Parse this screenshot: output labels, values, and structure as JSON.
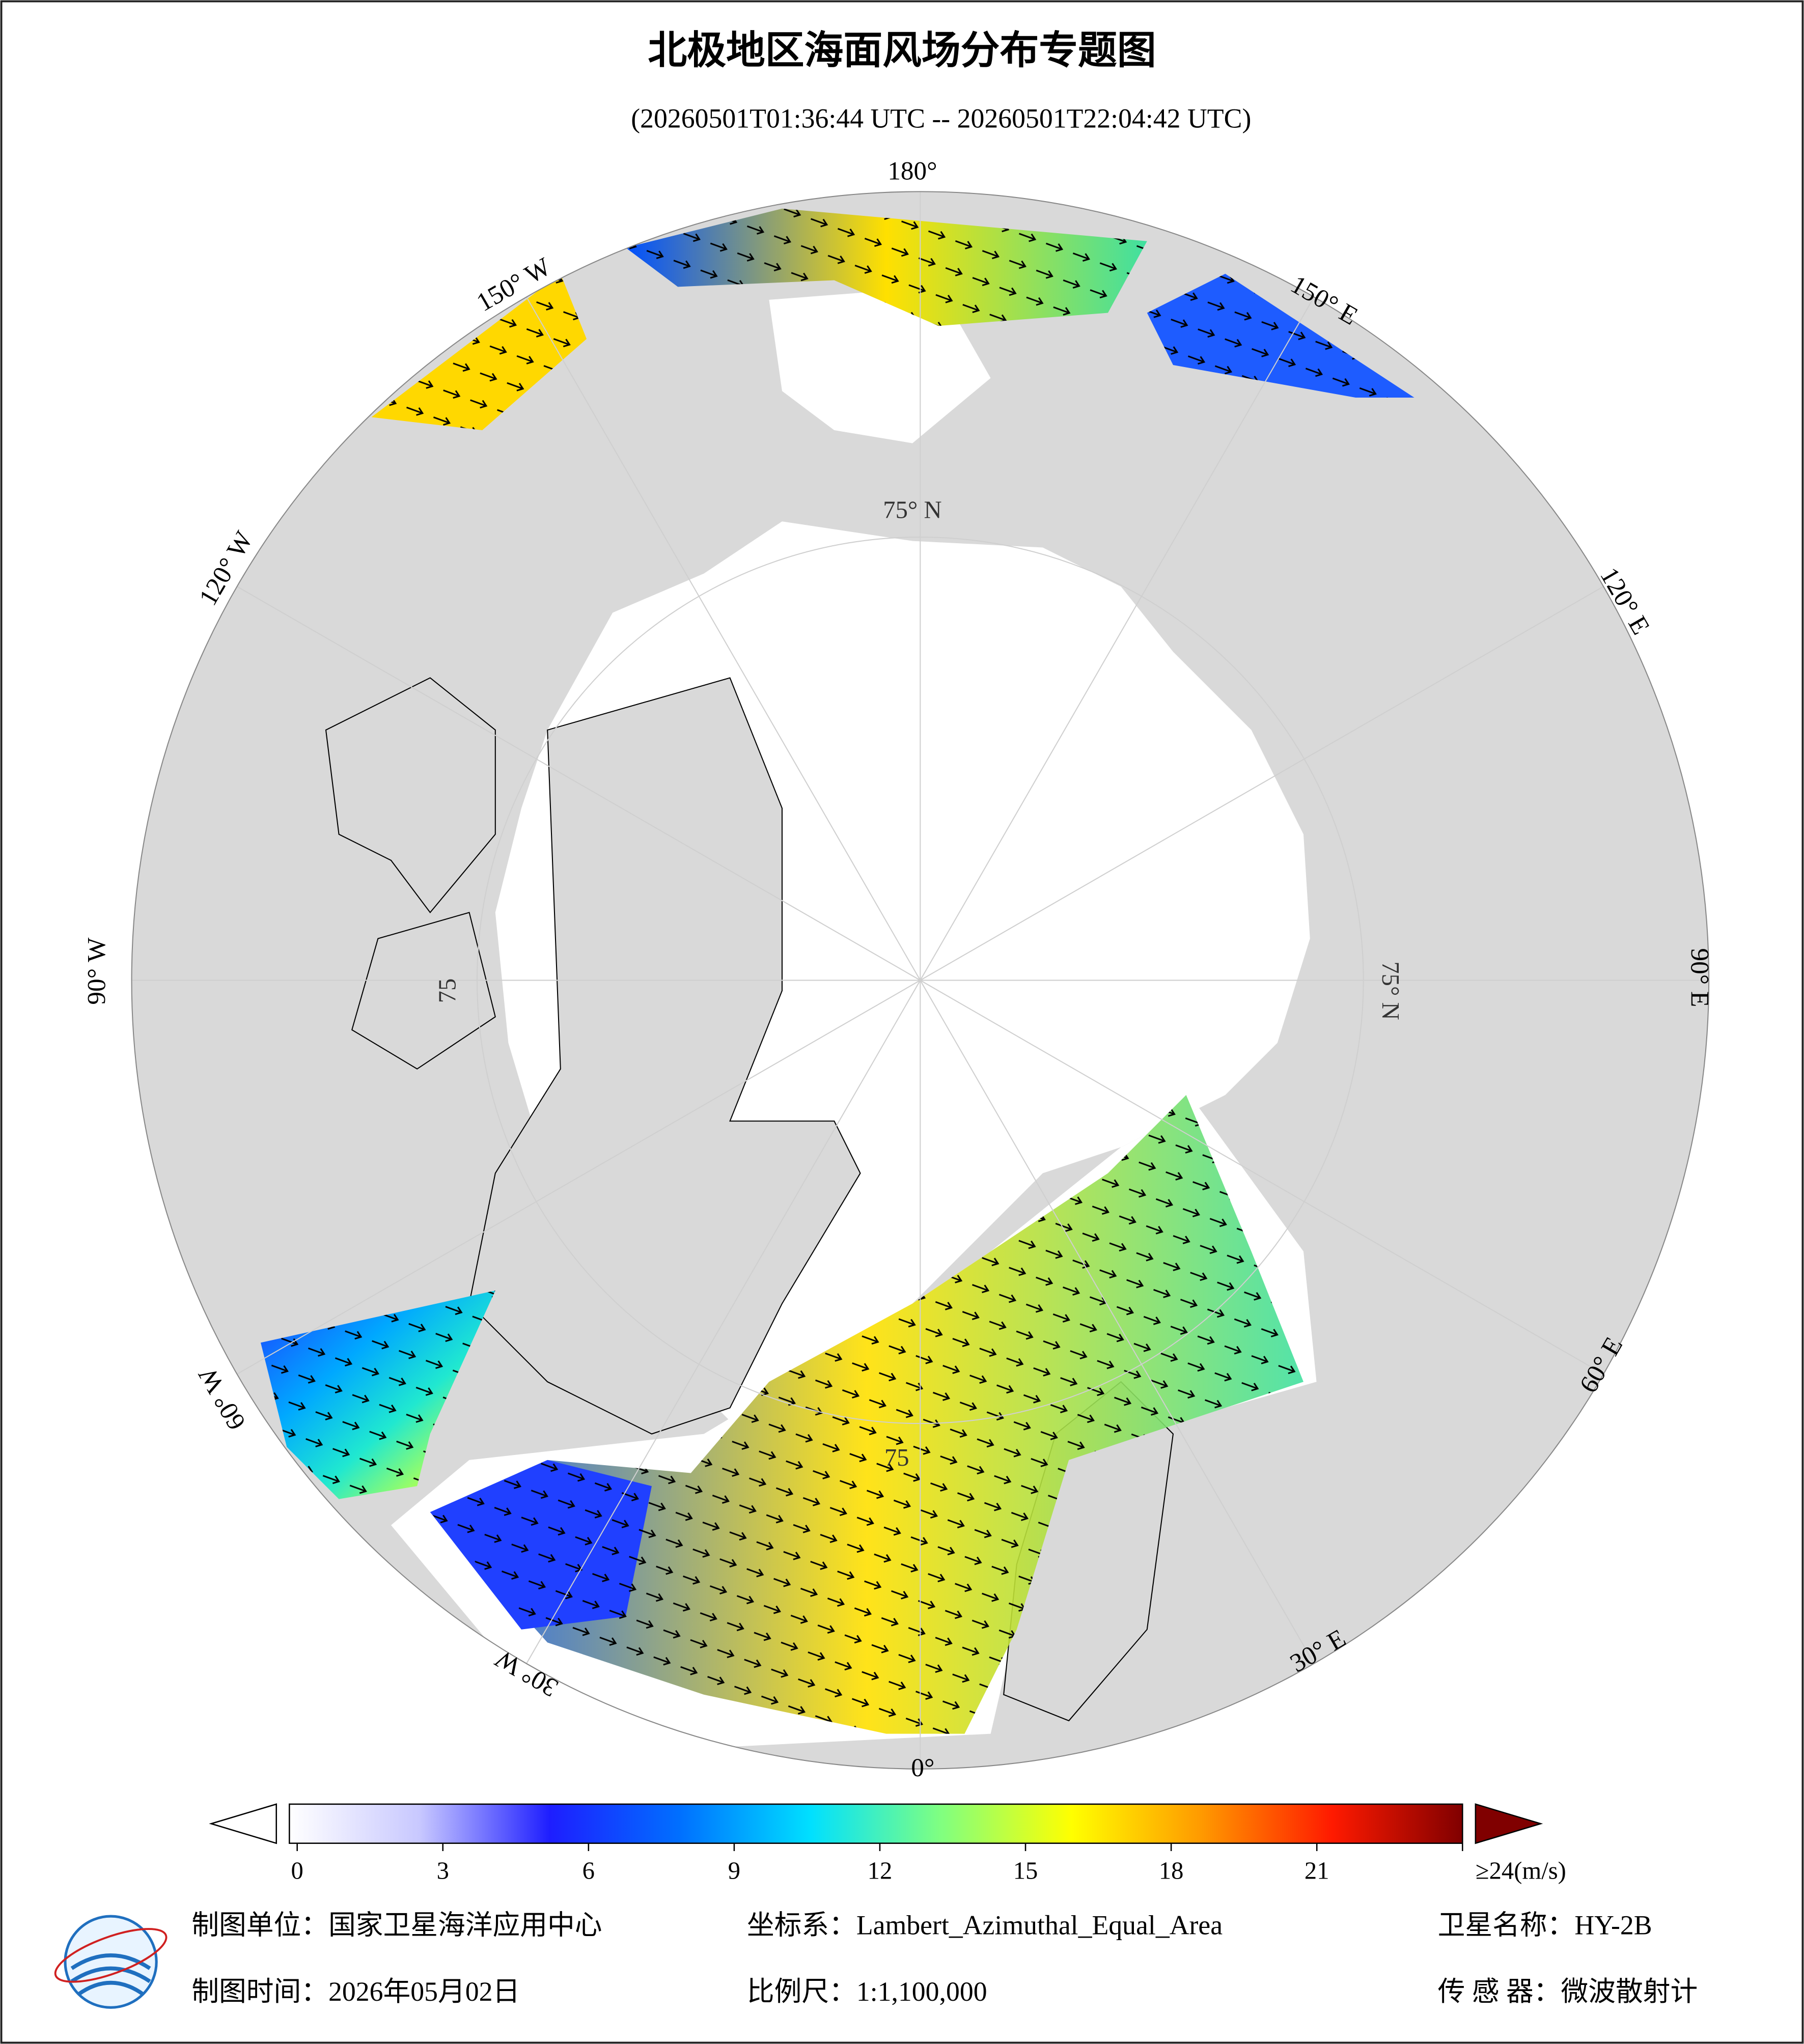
{
  "header": {
    "title": "北极地区海面风场分布专题图",
    "subtitle": "(20260501T01:36:44 UTC -- 20260501T22:04:42 UTC)"
  },
  "map": {
    "longitude_labels": [
      "180°",
      "150° E",
      "120° E",
      "90° E",
      "60° E",
      "30° E",
      "0°",
      "30° W",
      "60° W",
      "90° W",
      "120° W",
      "150° W"
    ],
    "latitude_labels": [
      "75° N",
      "75° N",
      "75",
      "75"
    ]
  },
  "colorbar": {
    "lim": [
      0,
      24
    ],
    "ticks": [
      0,
      3,
      6,
      9,
      12,
      15,
      18,
      21,
      {
        "value": 24,
        "label": "≥24(m/s)"
      }
    ],
    "colors": [
      "#ffffff",
      "#c8c8ff",
      "#1e1eff",
      "#0070ff",
      "#00e0ff",
      "#80ff80",
      "#ffff00",
      "#ff9900",
      "#ff1a00",
      "#800000"
    ]
  },
  "footer": {
    "unit": "制图单位：国家卫星海洋应用中心",
    "crs": "坐标系：Lambert_Azimuthal_Equal_Area",
    "satellite": "卫星名称：HY-2B",
    "date": "制图时间：2026年05月02日",
    "scale": "比例尺：1:1,100,000",
    "sensor": "传 感 器：微波散射计"
  }
}
